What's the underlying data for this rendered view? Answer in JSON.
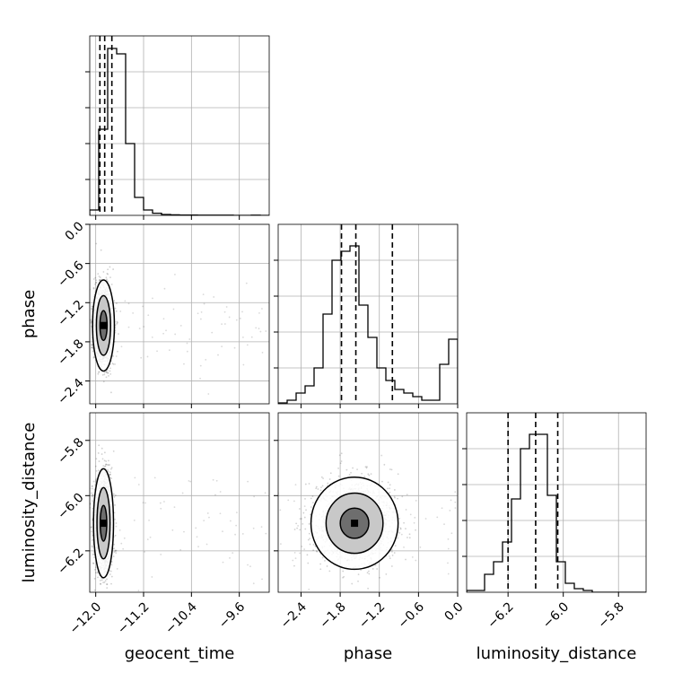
{
  "chart_data": {
    "type": "corner",
    "parameters": [
      "geocent_time",
      "phase",
      "luminosity_distance"
    ],
    "axis_labels": {
      "geocent_time": "geocent_time",
      "phase": "phase",
      "luminosity_distance": "luminosity_distance"
    },
    "ranges": {
      "geocent_time": [
        -12.1,
        -9.1
      ],
      "phase": [
        -2.75,
        0.0
      ],
      "luminosity_distance": [
        -6.35,
        -5.7
      ]
    },
    "ticks": {
      "geocent_time": [
        -12.0,
        -11.2,
        -10.4,
        -9.6
      ],
      "phase": [
        -2.4,
        -1.8,
        -1.2,
        -0.6,
        0.0
      ],
      "luminosity_distance": [
        -6.2,
        -6.0,
        -5.8
      ]
    },
    "tick_labels": {
      "geocent_time": [
        "−12.0",
        "−11.2",
        "−10.4",
        "−9.6"
      ],
      "phase": [
        "−2.4",
        "−1.8",
        "−1.2",
        "−0.6",
        "0.0"
      ],
      "luminosity_distance": [
        "−6.2",
        "−6.0",
        "−5.8"
      ]
    },
    "quantiles": {
      "geocent_time": [
        -11.93,
        -11.85,
        -11.73
      ],
      "phase": [
        -1.78,
        -1.56,
        -1.0
      ],
      "luminosity_distance": [
        -6.2,
        -6.1,
        -6.02
      ]
    },
    "histograms": {
      "geocent_time": [
        0.03,
        0.48,
        0.93,
        0.9,
        0.4,
        0.1,
        0.03,
        0.012,
        0.005,
        0.003,
        0.002,
        0.002,
        0.001,
        0.001,
        0.001,
        0.001,
        0.0,
        0.0,
        0.001,
        0.0
      ],
      "phase": [
        0.005,
        0.02,
        0.06,
        0.1,
        0.2,
        0.5,
        0.8,
        0.85,
        0.88,
        0.55,
        0.37,
        0.2,
        0.13,
        0.08,
        0.06,
        0.04,
        0.02,
        0.02,
        0.22,
        0.36
      ],
      "luminosity_distance": [
        0.01,
        0.01,
        0.1,
        0.17,
        0.28,
        0.52,
        0.8,
        0.88,
        0.88,
        0.54,
        0.17,
        0.05,
        0.02,
        0.01,
        0.0,
        0.0,
        0.0,
        0.0,
        0.0,
        0.0
      ]
    },
    "gaussians": {
      "phase|geocent_time": {
        "mx": -11.87,
        "my": -1.55,
        "sx": 0.06,
        "sy": 0.23,
        "r": 0.0
      },
      "luminosity_distance|geocent_time": {
        "mx": -11.87,
        "my": -6.1,
        "sx": 0.055,
        "sy": 0.065,
        "r": 0.0
      },
      "luminosity_distance|phase": {
        "mx": -1.58,
        "my": -6.1,
        "sx": 0.22,
        "sy": 0.055,
        "r": 0.0
      }
    },
    "contour_levels": [
      0.39,
      0.86,
      0.99
    ],
    "grid": true
  }
}
